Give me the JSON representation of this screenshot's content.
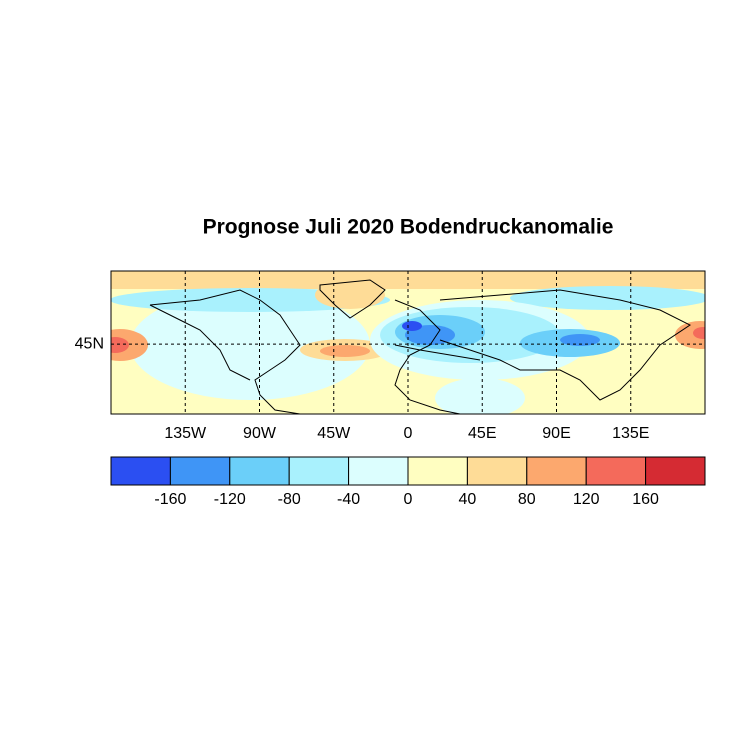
{
  "map": {
    "title": "Prognose Juli 2020 Bodendruckanomalie",
    "lonlim": [
      -180,
      180
    ],
    "latlim": [
      2,
      90
    ],
    "lon_ticks": [
      {
        "value": -135,
        "label": "135W"
      },
      {
        "value": -90,
        "label": "90W"
      },
      {
        "value": -45,
        "label": "45W"
      },
      0,
      {
        "value": 45,
        "label": "45E"
      },
      {
        "value": 90,
        "label": "90E"
      },
      {
        "value": 135,
        "label": "135E"
      }
    ],
    "lat_ticks": [
      {
        "value": 45,
        "label": "45N"
      }
    ],
    "grid": true,
    "colorbar": {
      "colors": [
        "#2b4ff2",
        "#3f95f6",
        "#6bcff9",
        "#a9f1fd",
        "#dcfefe",
        "#fffec1",
        "#fedc97",
        "#fca86e",
        "#f46a5b",
        "#d52b33"
      ],
      "ticks": [
        -160,
        -120,
        -80,
        -40,
        0,
        40,
        80,
        120,
        160
      ]
    }
  }
}
